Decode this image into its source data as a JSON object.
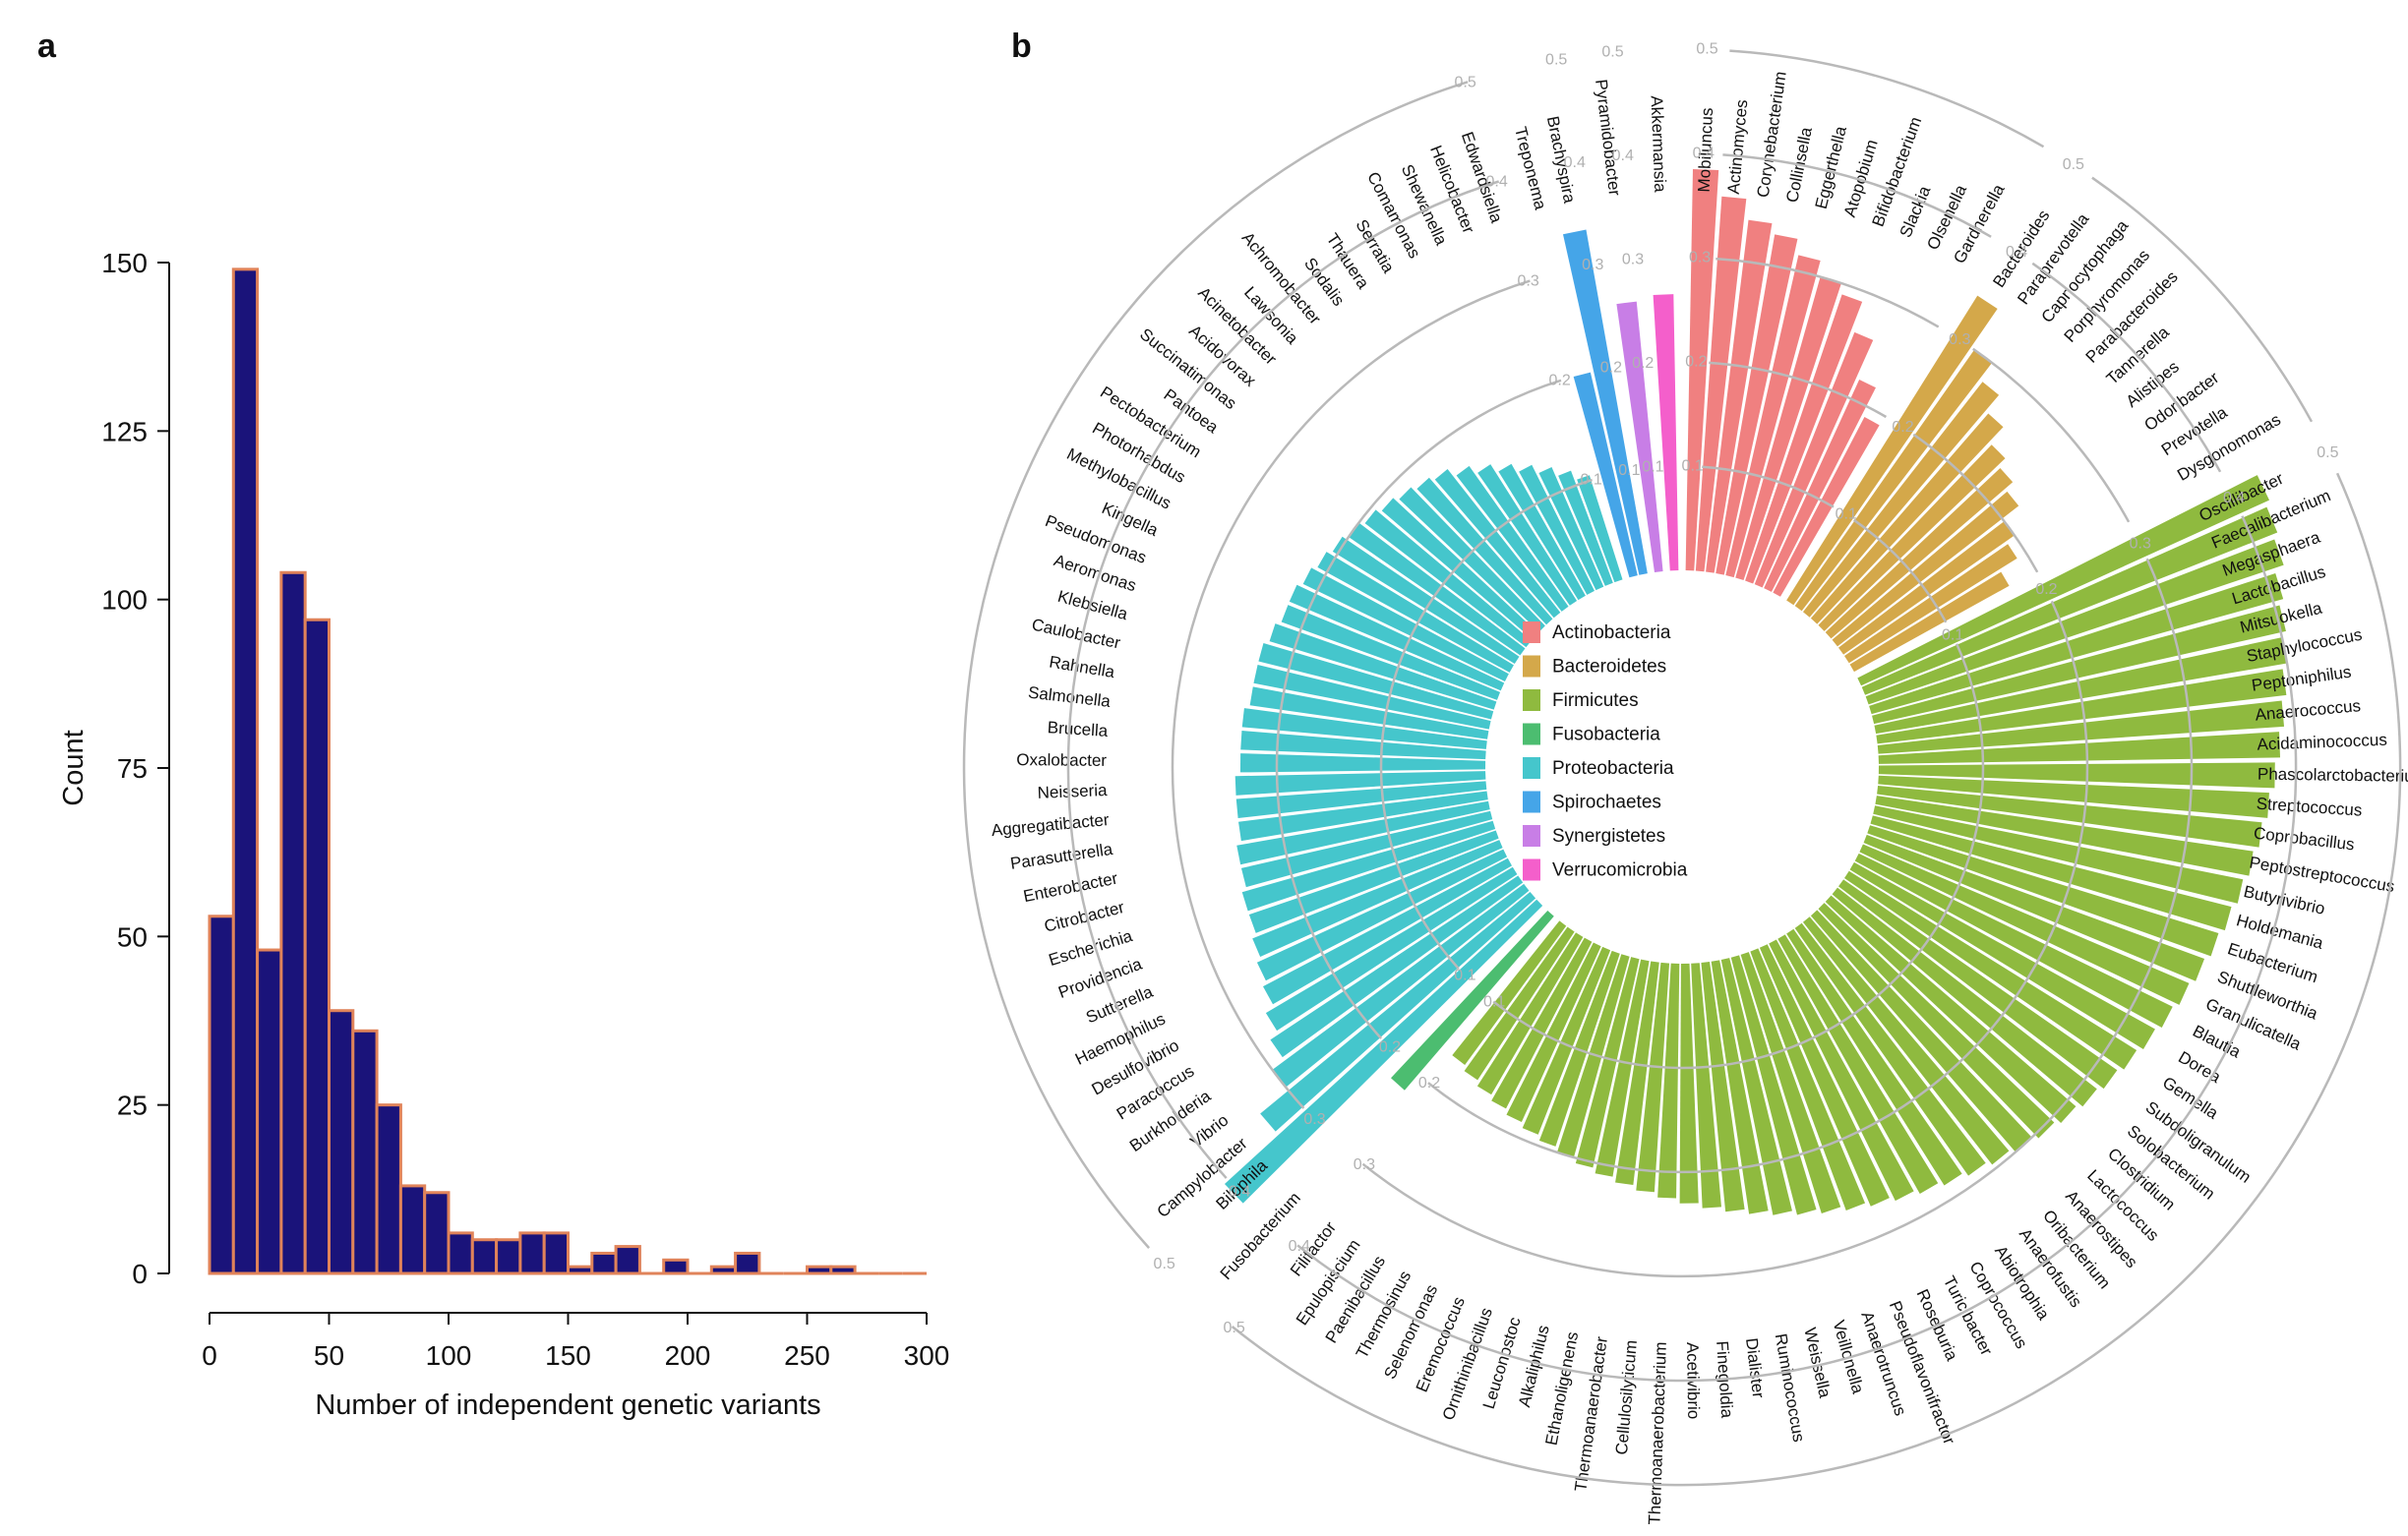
{
  "panels": {
    "a_label": "a",
    "b_label": "b"
  },
  "chart_data": [
    {
      "type": "bar",
      "subtype": "histogram",
      "xlabel": "Number of independent genetic variants",
      "ylabel": "Count",
      "xlim": [
        0,
        300
      ],
      "ylim": [
        0,
        150
      ],
      "x_ticks": [
        0,
        50,
        100,
        150,
        200,
        250,
        300
      ],
      "y_ticks": [
        0,
        25,
        50,
        75,
        100,
        125,
        150
      ],
      "bin_width": 10,
      "bin_starts": [
        0,
        10,
        20,
        30,
        40,
        50,
        60,
        70,
        80,
        90,
        100,
        110,
        120,
        130,
        140,
        150,
        160,
        170,
        180,
        190,
        200,
        210,
        220,
        230,
        240,
        250,
        260,
        270,
        280,
        290
      ],
      "values": [
        53,
        149,
        48,
        104,
        97,
        39,
        36,
        25,
        13,
        12,
        6,
        5,
        5,
        6,
        6,
        1,
        3,
        4,
        0,
        2,
        0,
        1,
        3,
        0,
        0,
        1,
        1,
        0,
        0,
        0
      ],
      "colors": {
        "fill": "#1a137a",
        "edge": "#e0835a"
      }
    },
    {
      "type": "bar",
      "subtype": "circular",
      "radial_ticks": [
        "0.1",
        "0.2",
        "0.3",
        "0.4",
        "0.5"
      ],
      "radial_max": 0.5,
      "legend_position": "center",
      "groups": [
        {
          "name": "Actinobacteria",
          "color": "#f08080",
          "genera": [
            "Mobiluncus",
            "Actinomyces",
            "Corynebacterium",
            "Collinsella",
            "Eggerthella",
            "Atopobium",
            "Bifidobacterium",
            "Slackia",
            "Olsenella",
            "Gardnerella"
          ],
          "values": [
            0.385,
            0.36,
            0.34,
            0.33,
            0.315,
            0.3,
            0.29,
            0.26,
            0.22,
            0.19
          ]
        },
        {
          "name": "Bacteroidetes",
          "color": "#d4a84a",
          "genera": [
            "Bacteroides",
            "Paraprevotella",
            "Capnocytophaga",
            "Porphyromonas",
            "Parabacteroides",
            "Tannerella",
            "Alistipes",
            "Odoribacter",
            "Prevotella",
            "Dysgonomonas"
          ],
          "values": [
            0.345,
            0.3,
            0.28,
            0.26,
            0.24,
            0.23,
            0.22,
            0.2,
            0.19,
            0.17
          ]
        },
        {
          "name": "Firmicutes",
          "color": "#8fba3f",
          "genera": [
            "Oscillibacter",
            "Faecalibacterium",
            "Megasphaera",
            "Lactobacillus",
            "Mitsuokella",
            "Staphylococcus",
            "Peptoniphilus",
            "Anaerococcus",
            "Acidaminococcus",
            "Phascolarctobacterium",
            "Streptococcus",
            "Coprobacillus",
            "Peptostreptococcus",
            "Butyrivibrio",
            "Holdemania",
            "Eubacterium",
            "Shuttleworthia",
            "Granulicatella",
            "Blautia",
            "Dorea",
            "Gemella",
            "Subdoligranulum",
            "Solobacterium",
            "Clostridium",
            "Lactococcus",
            "Anaerostipes",
            "Oribacterium",
            "Anaerofustis",
            "Abiotrophia",
            "Coprococcus",
            "Turicibacter",
            "Roseburia",
            "Pseudoflavonifractor",
            "Anaerotruncus",
            "Veillonella",
            "Weissella",
            "Ruminococcus",
            "Dialister",
            "Finegoldia",
            "Acetivibrio",
            "Thermoanaerobacterium",
            "Cellulosilyticum",
            "Thermoanaerobacter",
            "Ethanoligenens",
            "Alkaliphilus",
            "Leuconostoc",
            "Ornithinibacillus",
            "Eremococcus",
            "Selenomonas",
            "Thermosinus",
            "Paenibacillus",
            "Epulopiscium",
            "Filifactor"
          ],
          "values": [
            0.43,
            0.425,
            0.42,
            0.41,
            0.405,
            0.4,
            0.395,
            0.39,
            0.385,
            0.38,
            0.375,
            0.37,
            0.365,
            0.36,
            0.355,
            0.35,
            0.345,
            0.34,
            0.335,
            0.33,
            0.325,
            0.32,
            0.315,
            0.31,
            0.305,
            0.3,
            0.295,
            0.29,
            0.285,
            0.28,
            0.275,
            0.27,
            0.265,
            0.26,
            0.255,
            0.25,
            0.245,
            0.24,
            0.235,
            0.23,
            0.225,
            0.22,
            0.215,
            0.21,
            0.205,
            0.2,
            0.195,
            0.19,
            0.185,
            0.18,
            0.175,
            0.17,
            0.165
          ]
        },
        {
          "name": "Fusobacteria",
          "color": "#4cbd70",
          "genera": [
            "Fusobacterium"
          ],
          "values": [
            0.22
          ]
        },
        {
          "name": "Proteobacteria",
          "color": "#45c6cc",
          "genera": [
            "Bilophila",
            "Campylobacter",
            "Vibrio",
            "Burkholderia",
            "Paracoccus",
            "Desulfovibrio",
            "Haemophilus",
            "Sutterella",
            "Providencia",
            "Escherichia",
            "Citrobacter",
            "Enterobacter",
            "Parasutterella",
            "Aggregatibacter",
            "Neisseria",
            "Oxalobacter",
            "Brucella",
            "Salmonella",
            "Rahnella",
            "Caulobacter",
            "Klebsiella",
            "Aeromonas",
            "Pseudomonas",
            "Kingella",
            "Methylobacillus",
            "Photorhabdus",
            "Pectobacterium",
            "Pantoea",
            "Succinatimonas",
            "Acidovorax",
            "Acinetobacter",
            "Lawsonia",
            "Achromobacter",
            "Sodalis",
            "Thauera",
            "Serratia",
            "Comamonas",
            "Shewanella",
            "Helicobacter",
            "Edwardsiella"
          ],
          "values": [
            0.405,
            0.335,
            0.3,
            0.285,
            0.275,
            0.265,
            0.26,
            0.255,
            0.25,
            0.25,
            0.245,
            0.245,
            0.24,
            0.24,
            0.24,
            0.235,
            0.235,
            0.235,
            0.23,
            0.23,
            0.23,
            0.225,
            0.22,
            0.22,
            0.215,
            0.21,
            0.205,
            0.2,
            0.195,
            0.19,
            0.185,
            0.18,
            0.175,
            0.165,
            0.155,
            0.145,
            0.135,
            0.125,
            0.115,
            0.105
          ]
        },
        {
          "name": "Spirochaetes",
          "color": "#45a5e8",
          "genera": [
            "Treponema",
            "Brachyspira"
          ],
          "values": [
            0.2,
            0.335
          ]
        },
        {
          "name": "Synergistetes",
          "color": "#c87ee6",
          "genera": [
            "Pyramidobacter"
          ],
          "values": [
            0.26
          ]
        },
        {
          "name": "Verrucomicrobia",
          "color": "#f45fcb",
          "genera": [
            "Akkermansia"
          ],
          "values": [
            0.265
          ]
        }
      ]
    }
  ]
}
